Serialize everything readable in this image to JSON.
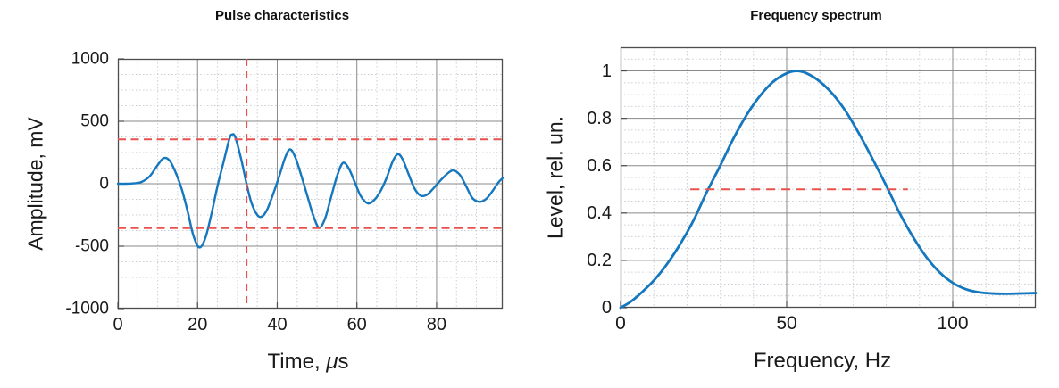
{
  "page": {
    "background": "#ffffff"
  },
  "style": {
    "curve_blue": "#1577bd",
    "annotation_red": "#e8524e",
    "major_grid": "#8a8a8a",
    "minor_grid": "#c9ced6",
    "box_color": "#4d4d4d",
    "text_color": "#1a1a1a"
  },
  "chart_data": [
    {
      "id": "pulse-characteristics",
      "type": "line",
      "title": "Pulse characteristics",
      "xlabel": "Time, μs",
      "xlabel_parts": [
        "Time, ",
        "μ",
        "s"
      ],
      "ylabel": "Amplitude, mV",
      "xlim": [
        0,
        96.6
      ],
      "ylim": [
        -1000,
        1000
      ],
      "xtick_values": [
        0,
        20,
        40,
        60,
        80
      ],
      "xtick_labels": [
        "0",
        "20",
        "40",
        "60",
        "80"
      ],
      "ytick_values": [
        1000,
        500,
        0,
        -500,
        -1000
      ],
      "ytick_labels": [
        "1000",
        "500",
        "0",
        "-500",
        "-1000"
      ],
      "grid": true,
      "minor_grid": true,
      "minor_x_step": 5,
      "minor_y_step": 125,
      "legend": "none",
      "series": [
        {
          "name": "pulse-waveform",
          "color": "#1577bd",
          "width": 2.4,
          "x": [
            0,
            2,
            4,
            6,
            8,
            10,
            11.5,
            13,
            14.5,
            16,
            17.5,
            19,
            20.5,
            22,
            23.5,
            25,
            26.5,
            28,
            28.7,
            29.5,
            31,
            32.3,
            33.5,
            35,
            36.2,
            37.5,
            39,
            40.5,
            42,
            43.2,
            44.5,
            46,
            47.5,
            49,
            50.5,
            52,
            53.5,
            55,
            56.5,
            58,
            59.5,
            61,
            62.8,
            64.5,
            66,
            67.5,
            69,
            70.3,
            71.5,
            73,
            74.5,
            76,
            77.5,
            79,
            80.5,
            82,
            83.5,
            84.5,
            86,
            87.5,
            89,
            90.8,
            92.5,
            94,
            95.5,
            96.6
          ],
          "y": [
            0,
            0,
            3,
            15,
            60,
            150,
            205,
            185,
            90,
            -40,
            -220,
            -420,
            -510,
            -430,
            -240,
            -20,
            170,
            360,
            395,
            370,
            190,
            0,
            -150,
            -250,
            -262,
            -205,
            -80,
            60,
            210,
            275,
            215,
            70,
            -90,
            -250,
            -352,
            -280,
            -110,
            60,
            167,
            120,
            10,
            -100,
            -158,
            -125,
            -55,
            50,
            180,
            237,
            195,
            75,
            -40,
            -95,
            -90,
            -45,
            10,
            60,
            100,
            105,
            65,
            -25,
            -115,
            -145,
            -120,
            -60,
            10,
            45
          ]
        }
      ],
      "annotations": [
        {
          "name": "upper-amplitude-threshold",
          "type": "hline",
          "y": 355,
          "color": "#e8524e",
          "style": "dashed",
          "dash": "9 5.5"
        },
        {
          "name": "lower-amplitude-threshold",
          "type": "hline",
          "y": -355,
          "color": "#e8524e",
          "style": "dashed",
          "dash": "9 5.5"
        },
        {
          "name": "pulse-time-marker",
          "type": "vline",
          "x": 32.3,
          "color": "#e8524e",
          "style": "dashed",
          "dash": "8 6"
        }
      ]
    },
    {
      "id": "frequency-spectrum",
      "type": "line",
      "title": "Frequency spectrum",
      "xlabel": "Frequency, Hz",
      "xlabel_parts": [
        "Frequency, Hz",
        "",
        ""
      ],
      "ylabel": "Level, rel. un.",
      "xlim": [
        0,
        125
      ],
      "ylim": [
        0,
        1.1
      ],
      "xtick_values": [
        0,
        50,
        100
      ],
      "xtick_labels": [
        "0",
        "50",
        "100"
      ],
      "ytick_values": [
        1,
        0.8,
        0.6,
        0.4,
        0.2,
        0
      ],
      "ytick_labels": [
        "1",
        "0.8",
        "0.6",
        "0.4",
        "0.2",
        "0"
      ],
      "grid": true,
      "minor_grid": true,
      "minor_x_step": 10,
      "minor_y_step": 0.05,
      "legend": "none",
      "series": [
        {
          "name": "spectrum-curve",
          "color": "#1577bd",
          "width": 2.8,
          "x": [
            0,
            3,
            6,
            10,
            14,
            18,
            22,
            26,
            30,
            34,
            38,
            42,
            46,
            50,
            53,
            56,
            60,
            64,
            68,
            72,
            76,
            80,
            84,
            88,
            92,
            96,
            100,
            104,
            108,
            112,
            116,
            120,
            125
          ],
          "y": [
            0,
            0.025,
            0.06,
            0.115,
            0.185,
            0.27,
            0.37,
            0.49,
            0.6,
            0.715,
            0.815,
            0.895,
            0.955,
            0.99,
            1.0,
            0.99,
            0.955,
            0.9,
            0.825,
            0.73,
            0.625,
            0.515,
            0.4,
            0.3,
            0.215,
            0.15,
            0.105,
            0.078,
            0.065,
            0.06,
            0.059,
            0.06,
            0.062
          ]
        }
      ],
      "annotations": [
        {
          "name": "half-level-bandwidth-line",
          "type": "hline",
          "y": 0.5,
          "x1": 21,
          "x2": 86.5,
          "color": "#e8524e",
          "style": "dashed",
          "dash": "10 7"
        }
      ]
    }
  ]
}
